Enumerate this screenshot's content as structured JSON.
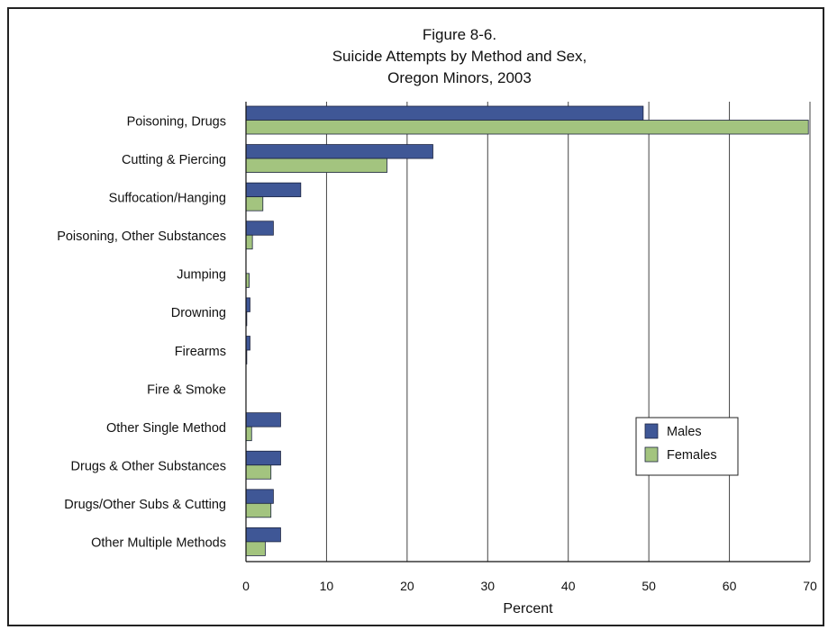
{
  "chart_data": {
    "type": "bar",
    "orientation": "horizontal",
    "title_lines": [
      "Figure 8-6.",
      "Suicide Attempts by Method and Sex,",
      "Oregon Minors, 2003"
    ],
    "xlabel": "Percent",
    "ylabel": "",
    "xlim": [
      0,
      70
    ],
    "xticks": [
      0,
      10,
      20,
      30,
      40,
      50,
      60,
      70
    ],
    "grid": true,
    "legend_position": "lower-right",
    "categories": [
      "Poisoning, Drugs",
      "Cutting & Piercing",
      "Suffocation/Hanging",
      "Poisoning, Other Substances",
      "Jumping",
      "Drowning",
      "Firearms",
      "Fire & Smoke",
      "Other Single Method",
      "Drugs & Other Substances",
      "Drugs/Other Subs & Cutting",
      "Other Multiple Methods"
    ],
    "series": [
      {
        "name": "Males",
        "color": "#3f5796",
        "values": [
          49.3,
          23.2,
          6.8,
          3.4,
          0.0,
          0.5,
          0.5,
          0.0,
          4.3,
          4.3,
          3.4,
          4.3
        ]
      },
      {
        "name": "Females",
        "color": "#a3c47f",
        "values": [
          69.8,
          17.5,
          2.1,
          0.8,
          0.4,
          0.1,
          0.1,
          0.0,
          0.7,
          3.1,
          3.1,
          2.4
        ]
      }
    ]
  }
}
